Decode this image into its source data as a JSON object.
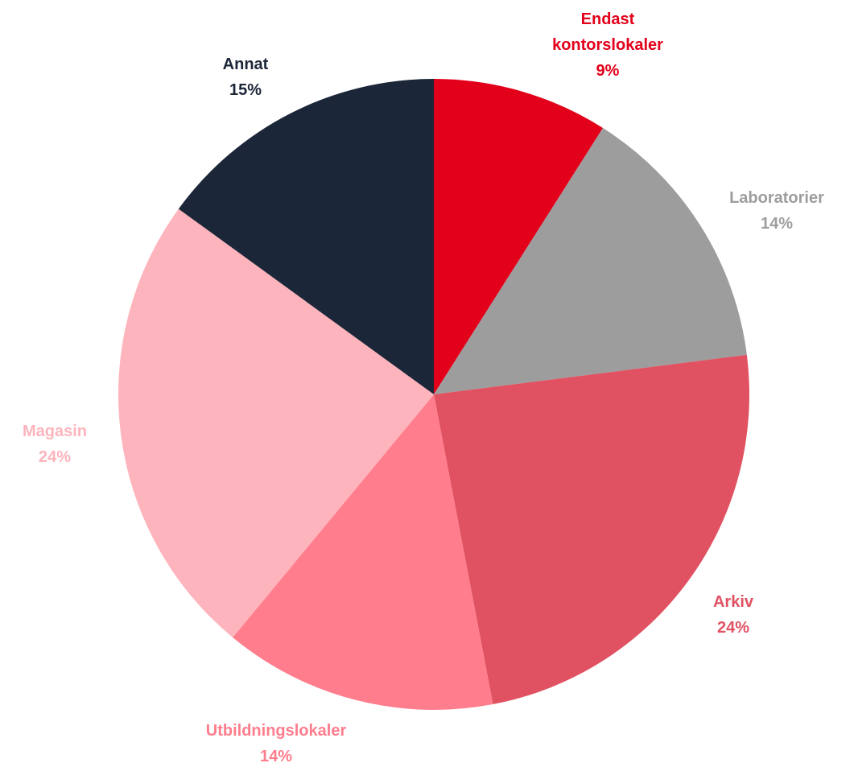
{
  "chart_data": {
    "type": "pie",
    "categories": [
      "Endast kontorslokaler",
      "Laboratorier",
      "Arkiv",
      "Utbildningslokaler",
      "Magasin",
      "Annat"
    ],
    "values": [
      9,
      14,
      24,
      14,
      24,
      15
    ],
    "value_labels": [
      "9%",
      "14%",
      "24%",
      "14%",
      "24%",
      "15%"
    ],
    "colors": [
      "#e2001a",
      "#9d9d9d",
      "#e05262",
      "#ff7d8c",
      "#fdb4bc",
      "#1b2638"
    ]
  }
}
